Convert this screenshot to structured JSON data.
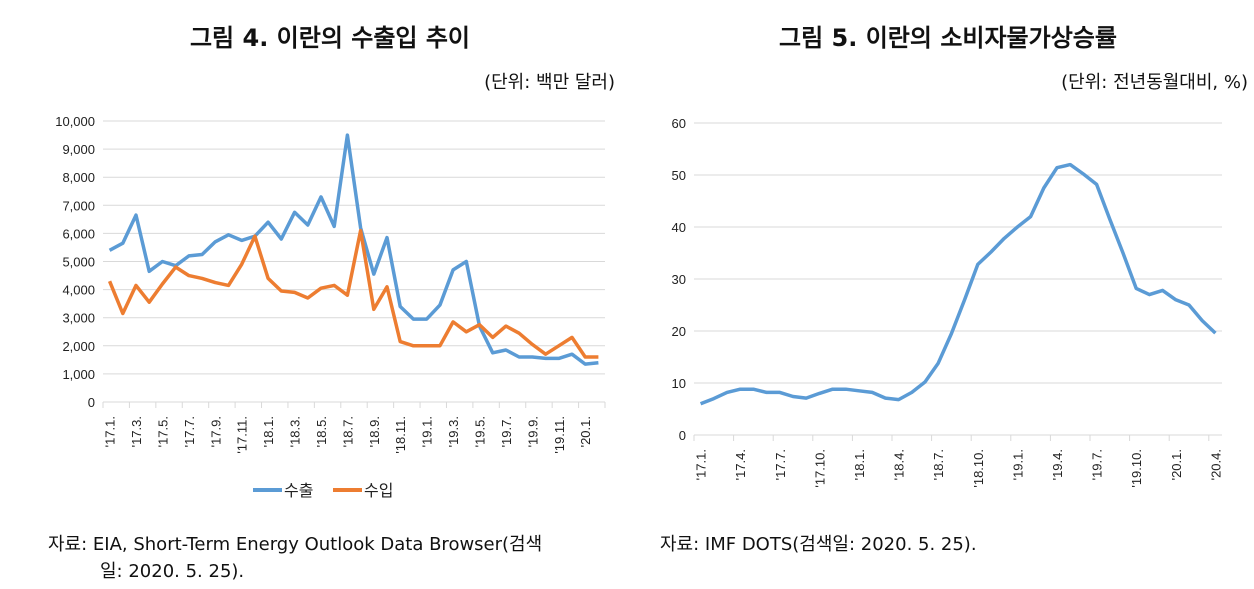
{
  "chart_data": [
    {
      "type": "line",
      "title": "그림 4. 이란의 수출입 추이",
      "unit_label": "(단위: 백만 달러)",
      "source": [
        "자료: EIA, Short-Term Energy Outlook Data Browser(검색",
        "일: 2020. 5. 25)."
      ],
      "ylim": [
        0,
        10000
      ],
      "yticks": [
        "0",
        "1,000",
        "2,000",
        "3,000",
        "4,000",
        "5,000",
        "6,000",
        "7,000",
        "8,000",
        "9,000",
        "10,000"
      ],
      "xtick_labels": [
        "'17.1.",
        "'17.3.",
        "'17.5.",
        "'17.7.",
        "'17.9.",
        "'17.11.",
        "'18.1.",
        "'18.3.",
        "'18.5.",
        "'18.7.",
        "'18.9.",
        "'18.11.",
        "'19.1.",
        "'19.3.",
        "'19.5.",
        "'19.7.",
        "'19.9.",
        "'19.11.",
        "'20.1."
      ],
      "x": [
        "2017-01",
        "2017-02",
        "2017-03",
        "2017-04",
        "2017-05",
        "2017-06",
        "2017-07",
        "2017-08",
        "2017-09",
        "2017-10",
        "2017-11",
        "2017-12",
        "2018-01",
        "2018-02",
        "2018-03",
        "2018-04",
        "2018-05",
        "2018-06",
        "2018-07",
        "2018-08",
        "2018-09",
        "2018-10",
        "2018-11",
        "2018-12",
        "2019-01",
        "2019-02",
        "2019-03",
        "2019-04",
        "2019-05",
        "2019-06",
        "2019-07",
        "2019-08",
        "2019-09",
        "2019-10",
        "2019-11",
        "2019-12",
        "2020-01",
        "2020-02"
      ],
      "grid": true,
      "legend": "bottom",
      "series": [
        {
          "name": "수출",
          "color": "#5B9BD5",
          "values": [
            5400,
            5650,
            6650,
            4650,
            5000,
            4850,
            5200,
            5250,
            5700,
            5950,
            5750,
            5900,
            6400,
            5800,
            6750,
            6300,
            7300,
            6250,
            9500,
            6200,
            4550,
            5850,
            3400,
            2950,
            2950,
            3450,
            4700,
            5000,
            2700,
            1750,
            1850,
            1600,
            1600,
            1550,
            1550,
            1700,
            1350,
            1400
          ]
        },
        {
          "name": "수입",
          "color": "#ED7D31",
          "values": [
            4300,
            3150,
            4150,
            3550,
            4200,
            4800,
            4500,
            4400,
            4250,
            4150,
            4900,
            5900,
            4400,
            3950,
            3900,
            3700,
            4050,
            4150,
            3800,
            6100,
            3300,
            4100,
            2150,
            2000,
            2000,
            2000,
            2850,
            2500,
            2750,
            2300,
            2700,
            2450,
            2050,
            1700,
            2000,
            2300,
            1600,
            1600
          ]
        }
      ]
    },
    {
      "type": "line",
      "title": "그림 5. 이란의 소비자물가상승률",
      "unit_label": "(단위: 전년동월대비, %)",
      "source": [
        "자료: IMF DOTS(검색일: 2020. 5. 25)."
      ],
      "ylim": [
        0,
        60
      ],
      "yticks": [
        "0",
        "10",
        "20",
        "30",
        "40",
        "50",
        "60"
      ],
      "xtick_labels": [
        "'17.1.",
        "'17.4.",
        "'17.7.",
        "'17.10.",
        "'18.1.",
        "'18.4.",
        "'18.7.",
        "'18.10.",
        "'19.1.",
        "'19.4.",
        "'19.7.",
        "'19.10.",
        "'20.1.",
        "'20.4."
      ],
      "x": [
        "2017-01",
        "2017-02",
        "2017-03",
        "2017-04",
        "2017-05",
        "2017-06",
        "2017-07",
        "2017-08",
        "2017-09",
        "2017-10",
        "2017-11",
        "2017-12",
        "2018-01",
        "2018-02",
        "2018-03",
        "2018-04",
        "2018-05",
        "2018-06",
        "2018-07",
        "2018-08",
        "2018-09",
        "2018-10",
        "2018-11",
        "2018-12",
        "2019-01",
        "2019-02",
        "2019-03",
        "2019-04",
        "2019-05",
        "2019-06",
        "2019-07",
        "2019-08",
        "2019-09",
        "2019-10",
        "2019-11",
        "2019-12",
        "2020-01",
        "2020-02",
        "2020-03",
        "2020-04"
      ],
      "grid": true,
      "series": [
        {
          "color": "#5B9BD5",
          "values": [
            6,
            7,
            8.2,
            8.8,
            8.8,
            8.2,
            8.2,
            7.4,
            7.1,
            8,
            8.8,
            8.8,
            8.5,
            8.2,
            7.1,
            6.8,
            8.2,
            10.2,
            13.8,
            19.5,
            26,
            32.8,
            35.2,
            37.8,
            40,
            42,
            47.5,
            51.4,
            52,
            50.2,
            48.2,
            41.5,
            35,
            28.2,
            27,
            27.8,
            26,
            25,
            22,
            19.6
          ]
        }
      ]
    }
  ]
}
